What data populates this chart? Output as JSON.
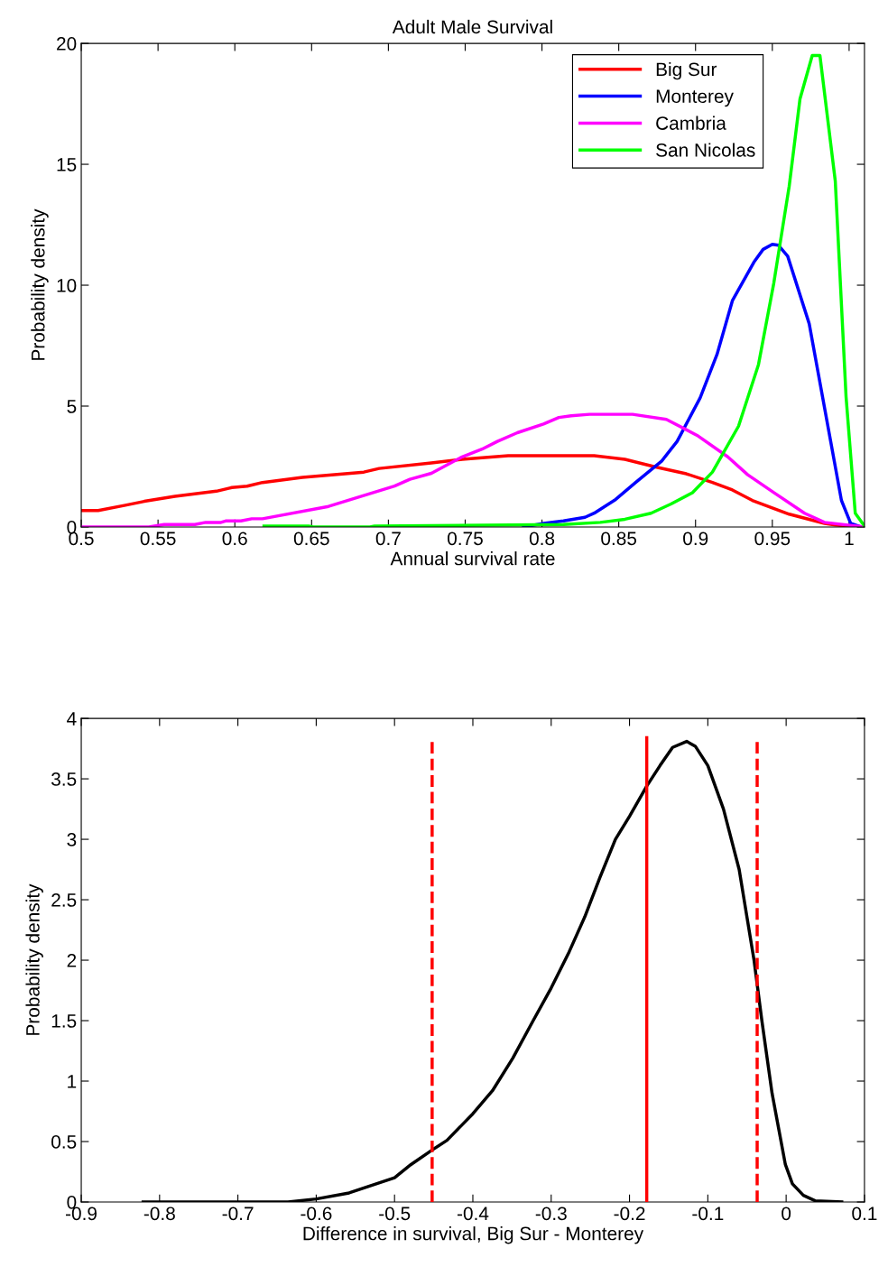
{
  "chart_data": [
    {
      "type": "line",
      "title": "Adult Male Survival",
      "xlabel": "Annual survival rate",
      "ylabel": "Probability density",
      "xlim": [
        0.5,
        1.01
      ],
      "xticks": [
        0.5,
        0.55,
        0.6,
        0.65,
        0.7,
        0.75,
        0.8,
        0.85,
        0.9,
        0.95,
        1
      ],
      "ylim": [
        0,
        20
      ],
      "yticks": [
        0,
        5,
        10,
        15,
        20
      ],
      "legend": "top right",
      "grid": false,
      "series": [
        {
          "name": "Big Sur",
          "color": "#ff0000",
          "x": [
            0.5,
            0.511,
            0.528,
            0.541,
            0.561,
            0.588,
            0.598,
            0.608,
            0.618,
            0.644,
            0.684,
            0.694,
            0.728,
            0.748,
            0.761,
            0.778,
            0.834,
            0.854,
            0.874,
            0.894,
            0.911,
            0.924,
            0.937,
            0.961,
            0.984,
            0.991,
            1.01
          ],
          "values": [
            0.68,
            0.68,
            0.89,
            1.06,
            1.27,
            1.48,
            1.63,
            1.69,
            1.84,
            2.05,
            2.27,
            2.42,
            2.65,
            2.8,
            2.86,
            2.95,
            2.95,
            2.8,
            2.48,
            2.2,
            1.84,
            1.53,
            1.1,
            0.53,
            0.15,
            0.08,
            0
          ]
        },
        {
          "name": "Monterey",
          "color": "#0000ff",
          "x": [
            0.788,
            0.801,
            0.814,
            0.828,
            0.834,
            0.848,
            0.861,
            0.878,
            0.888,
            0.903,
            0.914,
            0.924,
            0.938,
            0.944,
            0.95,
            0.954,
            0.96,
            0.974,
            0.988,
            0.995,
            1.001,
            1.008
          ],
          "values": [
            0,
            0.15,
            0.25,
            0.4,
            0.57,
            1.14,
            1.84,
            2.73,
            3.54,
            5.34,
            7.14,
            9.36,
            10.95,
            11.48,
            11.69,
            11.65,
            11.2,
            8.41,
            3.54,
            1.1,
            0.15,
            0
          ]
        },
        {
          "name": "Cambria",
          "color": "#ff00ff",
          "x": [
            0.5,
            0.544,
            0.554,
            0.574,
            0.581,
            0.591,
            0.594,
            0.604,
            0.611,
            0.618,
            0.661,
            0.704,
            0.714,
            0.728,
            0.748,
            0.761,
            0.771,
            0.784,
            0.801,
            0.811,
            0.819,
            0.831,
            0.859,
            0.881,
            0.901,
            0.921,
            0.934,
            0.951,
            0.971,
            0.984,
            1.01
          ],
          "values": [
            0,
            0,
            0.1,
            0.1,
            0.19,
            0.19,
            0.25,
            0.25,
            0.34,
            0.34,
            0.85,
            1.69,
            1.97,
            2.22,
            2.9,
            3.22,
            3.54,
            3.9,
            4.26,
            4.53,
            4.6,
            4.66,
            4.66,
            4.45,
            3.79,
            2.9,
            2.16,
            1.42,
            0.57,
            0.19,
            0
          ]
        },
        {
          "name": "San Nicolas",
          "color": "#00ff00",
          "x": [
            0.619,
            0.648,
            0.651,
            0.688,
            0.691,
            0.814,
            0.838,
            0.854,
            0.871,
            0.884,
            0.898,
            0.911,
            0.928,
            0.941,
            0.951,
            0.961,
            0.968,
            0.976,
            0.981,
            0.991,
            0.998,
            1.004,
            1.01
          ],
          "values": [
            0.04,
            0.04,
            0,
            0,
            0.04,
            0.1,
            0.19,
            0.32,
            0.57,
            0.95,
            1.42,
            2.27,
            4.17,
            6.72,
            10.1,
            14.1,
            17.7,
            19.5,
            19.5,
            14.3,
            5.4,
            0.57,
            0.04
          ]
        }
      ]
    },
    {
      "type": "line",
      "xlabel": "Difference in survival, Big Sur - Monterey",
      "ylabel": "Probability density",
      "xlim": [
        -0.9,
        0.1
      ],
      "xticks": [
        -0.9,
        -0.8,
        -0.7,
        -0.6,
        -0.5,
        -0.4,
        -0.3,
        -0.2,
        -0.1,
        0,
        0.1
      ],
      "ylim": [
        0,
        4
      ],
      "yticks": [
        0,
        0.5,
        1,
        1.5,
        2,
        2.5,
        3,
        3.5,
        4
      ],
      "grid": false,
      "series": [
        {
          "color": "#000000",
          "x": [
            -0.821,
            -0.636,
            -0.6,
            -0.558,
            -0.5,
            -0.479,
            -0.452,
            -0.433,
            -0.4,
            -0.375,
            -0.349,
            -0.323,
            -0.3,
            -0.277,
            -0.257,
            -0.238,
            -0.218,
            -0.2,
            -0.178,
            -0.161,
            -0.145,
            -0.127,
            -0.116,
            -0.1,
            -0.08,
            -0.06,
            -0.041,
            -0.031,
            -0.018,
            -0.001,
            0.008,
            0.022,
            0.037,
            0.071
          ],
          "values": [
            0,
            0,
            0.025,
            0.075,
            0.2,
            0.31,
            0.43,
            0.51,
            0.73,
            0.92,
            1.19,
            1.5,
            1.77,
            2.07,
            2.36,
            2.68,
            3.0,
            3.19,
            3.44,
            3.61,
            3.76,
            3.81,
            3.77,
            3.61,
            3.25,
            2.75,
            2.0,
            1.5,
            0.9,
            0.31,
            0.15,
            0.055,
            0.01,
            0
          ]
        }
      ],
      "ref_lines": [
        {
          "axis": "x",
          "value": -0.452,
          "color": "#ff0000",
          "line_style": "dashed"
        },
        {
          "axis": "x",
          "value": -0.178,
          "color": "#ff0000",
          "line_style": "solid"
        },
        {
          "axis": "x",
          "value": -0.037,
          "color": "#ff0000",
          "line_style": "dashed"
        }
      ]
    }
  ]
}
